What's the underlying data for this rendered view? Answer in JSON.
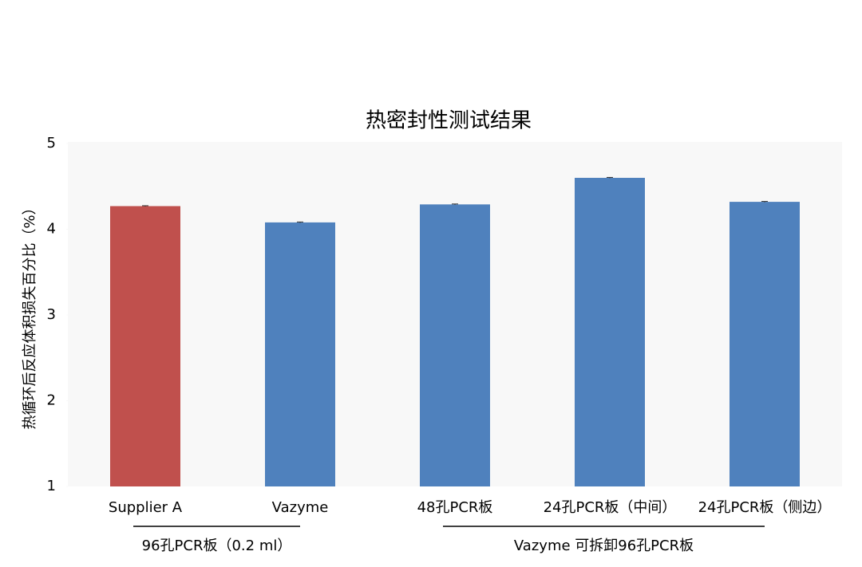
{
  "chart_data": {
    "type": "bar",
    "title": "热密封性测试结果",
    "y_label": "热循环后反应体积损失百分比（%）",
    "ylim": [
      1,
      5
    ],
    "yticks": [
      1,
      2,
      3,
      4,
      5
    ],
    "groups": [
      {
        "label": "96孔PCR板（0.2 ml）",
        "categories": [
          "Supplier A",
          "Vazyme"
        ],
        "values": [
          4.27,
          4.08
        ],
        "errors": [
          0.005,
          0.005
        ],
        "colors": [
          "#c0504d",
          "#4f81bd"
        ]
      },
      {
        "label": "Vazyme 可拆卸96孔PCR板",
        "categories": [
          "48孔PCR板",
          "24孔PCR板（中间）",
          "24孔PCR板（侧边）"
        ],
        "values": [
          4.29,
          4.6,
          4.32
        ],
        "errors": [
          0.005,
          0.005,
          0.005
        ],
        "colors": [
          "#4f81bd",
          "#4f81bd",
          "#4f81bd"
        ]
      }
    ]
  }
}
